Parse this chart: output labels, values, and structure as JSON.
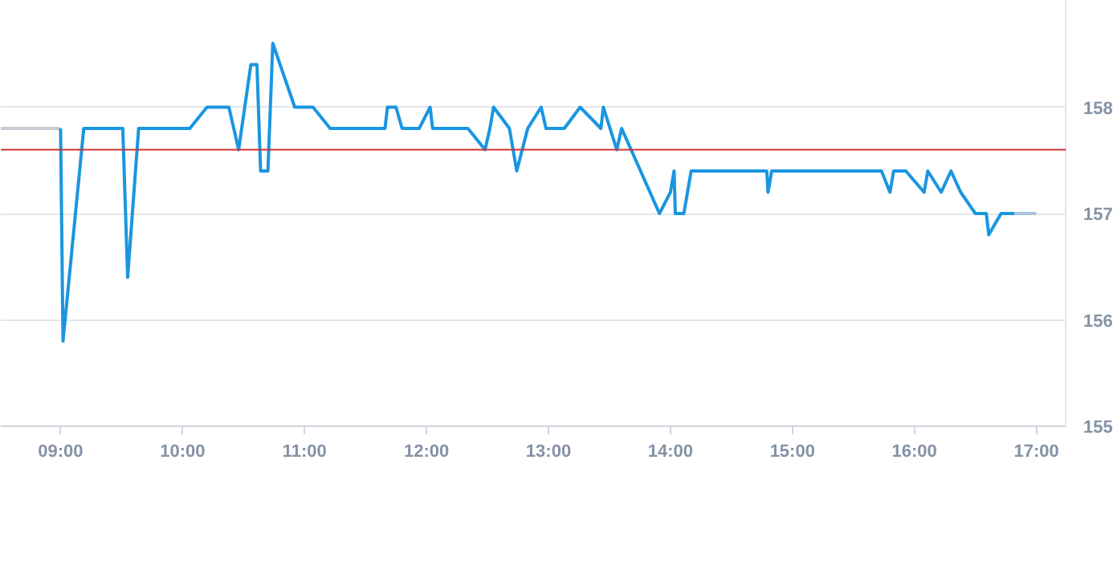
{
  "chart_data": {
    "type": "line",
    "xlim": [
      8.51,
      17.24
    ],
    "ylim": [
      155,
      159
    ],
    "xticks": [
      {
        "value": 9,
        "label": "09:00"
      },
      {
        "value": 10,
        "label": "10:00"
      },
      {
        "value": 11,
        "label": "11:00"
      },
      {
        "value": 12,
        "label": "12:00"
      },
      {
        "value": 13,
        "label": "13:00"
      },
      {
        "value": 14,
        "label": "14:00"
      },
      {
        "value": 15,
        "label": "15:00"
      },
      {
        "value": 16,
        "label": "16:00"
      },
      {
        "value": 17,
        "label": "17:00"
      }
    ],
    "yticks": [
      155,
      156,
      157,
      158
    ],
    "grid": "y",
    "marker": "none",
    "line_style": "solid",
    "ref_lines": [
      {
        "axis": "y",
        "value": 157.6,
        "color": "#cc3333"
      }
    ],
    "series": [
      {
        "color": "#c8ccd4",
        "x": [
          8.51,
          9.0
        ],
        "values": [
          157.8,
          157.8
        ]
      },
      {
        "color": "#a8c4dc",
        "x": [
          16.82,
          17.0
        ],
        "values": [
          157.0,
          157.0
        ]
      },
      {
        "color": "#1a96e0",
        "x": [
          9.0,
          9.02,
          9.19,
          9.51,
          9.55,
          9.64,
          10.06,
          10.2,
          10.38,
          10.46,
          10.56,
          10.61,
          10.64,
          10.7,
          10.74,
          10.92,
          11.07,
          11.21,
          11.66,
          11.68,
          11.75,
          11.8,
          11.94,
          12.03,
          12.05,
          12.34,
          12.48,
          12.52,
          12.55,
          12.68,
          12.74,
          12.83,
          12.94,
          12.98,
          13.13,
          13.26,
          13.43,
          13.45,
          13.56,
          13.6,
          13.91,
          14.0,
          14.03,
          14.04,
          14.11,
          14.17,
          14.79,
          14.8,
          14.83,
          15.73,
          15.8,
          15.83,
          15.93,
          16.08,
          16.11,
          16.22,
          16.3,
          16.38,
          16.5,
          16.59,
          16.61,
          16.71,
          16.82
        ],
        "values": [
          157.8,
          155.8,
          157.8,
          157.8,
          156.4,
          157.8,
          157.8,
          158.0,
          158.0,
          157.6,
          158.4,
          158.4,
          157.4,
          157.4,
          158.6,
          158.0,
          158.0,
          157.8,
          157.8,
          158.0,
          158.0,
          157.8,
          157.8,
          158.0,
          157.8,
          157.8,
          157.6,
          157.8,
          158.0,
          157.8,
          157.4,
          157.8,
          158.0,
          157.8,
          157.8,
          158.0,
          157.8,
          158.0,
          157.6,
          157.8,
          157.0,
          157.2,
          157.4,
          157.0,
          157.0,
          157.4,
          157.4,
          157.2,
          157.4,
          157.4,
          157.2,
          157.4,
          157.4,
          157.2,
          157.4,
          157.2,
          157.4,
          157.2,
          157.0,
          157.0,
          156.8,
          157.0,
          157.0
        ]
      }
    ]
  }
}
